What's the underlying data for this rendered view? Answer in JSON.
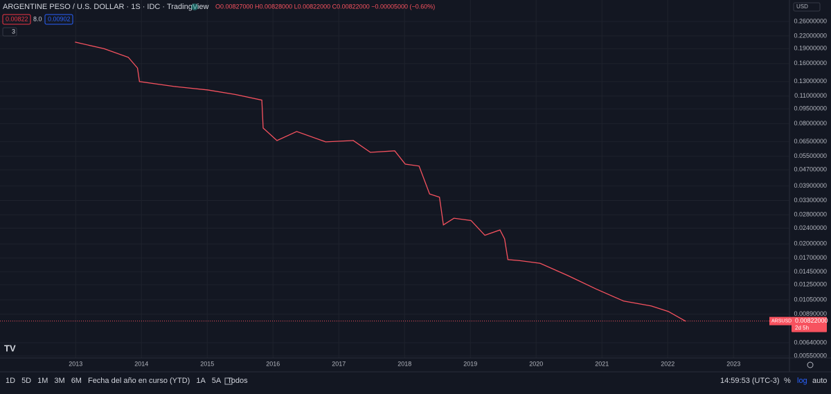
{
  "header": {
    "title": "ARGENTINE PESO / U.S. DOLLAR · 1S · IDC · TradingView",
    "ohlc": "O0.00827000 H0.00828000 L0.00822000 C0.00822000 −0.00005000 (−0.60%)",
    "sell": "0.00822",
    "spread": "8.0",
    "buy": "0.00902",
    "indicators": "3",
    "currency": "USD"
  },
  "chart_data": {
    "type": "line",
    "log_scale": true,
    "grid": true,
    "x": [
      2012.99,
      2013.43,
      2013.8,
      2013.94,
      2013.97,
      2014.49,
      2015.01,
      2015.43,
      2015.83,
      2015.85,
      2016.06,
      2016.36,
      2016.8,
      2017.22,
      2017.48,
      2017.85,
      2018.01,
      2018.22,
      2018.38,
      2018.53,
      2018.59,
      2018.75,
      2019.01,
      2019.22,
      2019.45,
      2019.52,
      2019.57,
      2019.75,
      2020.06,
      2020.48,
      2020.91,
      2021.33,
      2021.75,
      2022.01,
      2022.27
    ],
    "series": [
      {
        "name": "ARSUSD",
        "color": "#f7525f",
        "values": [
          0.205,
          0.19,
          0.172,
          0.152,
          0.13,
          0.123,
          0.118,
          0.112,
          0.105,
          0.0761,
          0.0659,
          0.0731,
          0.0649,
          0.0659,
          0.0575,
          0.0585,
          0.0502,
          0.0491,
          0.0356,
          0.0343,
          0.0249,
          0.0269,
          0.0262,
          0.0221,
          0.0235,
          0.0212,
          0.0167,
          0.0165,
          0.016,
          0.0139,
          0.0119,
          0.01035,
          0.00978,
          0.00918,
          0.00821
        ]
      }
    ],
    "xlim": [
      2011.85,
      2023.85
    ],
    "xticks": [
      2013,
      2014,
      2015,
      2016,
      2017,
      2018,
      2019,
      2020,
      2021,
      2022,
      2023
    ],
    "ylim": [
      0.00537,
      0.333
    ],
    "yticks": [
      {
        "value": 0.26,
        "label": "0.26000000"
      },
      {
        "value": 0.22,
        "label": "0.22000000"
      },
      {
        "value": 0.19,
        "label": "0.19000000"
      },
      {
        "value": 0.16,
        "label": "0.16000000"
      },
      {
        "value": 0.13,
        "label": "0.13000000"
      },
      {
        "value": 0.11,
        "label": "0.11000000"
      },
      {
        "value": 0.095,
        "label": "0.09500000"
      },
      {
        "value": 0.08,
        "label": "0.08000000"
      },
      {
        "value": 0.065,
        "label": "0.06500000"
      },
      {
        "value": 0.055,
        "label": "0.05500000"
      },
      {
        "value": 0.047,
        "label": "0.04700000"
      },
      {
        "value": 0.039,
        "label": "0.03900000"
      },
      {
        "value": 0.033,
        "label": "0.03300000"
      },
      {
        "value": 0.028,
        "label": "0.02800000"
      },
      {
        "value": 0.024,
        "label": "0.02400000"
      },
      {
        "value": 0.02,
        "label": "0.02000000"
      },
      {
        "value": 0.017,
        "label": "0.01700000"
      },
      {
        "value": 0.0145,
        "label": "0.01450000"
      },
      {
        "value": 0.0125,
        "label": "0.01250000"
      },
      {
        "value": 0.0105,
        "label": "0.01050000"
      },
      {
        "value": 0.0089,
        "label": "0.00890000"
      },
      {
        "value": 0.0064,
        "label": "0.00640000"
      },
      {
        "value": 0.0055,
        "label": "0.00550000"
      }
    ],
    "last_price": {
      "value": 0.00822,
      "label": "0.00822000"
    },
    "countdown": "2d 5h"
  },
  "toolbar": {
    "ranges": [
      "1D",
      "5D",
      "1M",
      "3M",
      "6M",
      "Fecha del año en curso (YTD)",
      "1A",
      "5A",
      "Todos"
    ],
    "clock": "14:59:53 (UTC-3)",
    "percent": "%",
    "log": "log",
    "auto": "auto"
  }
}
